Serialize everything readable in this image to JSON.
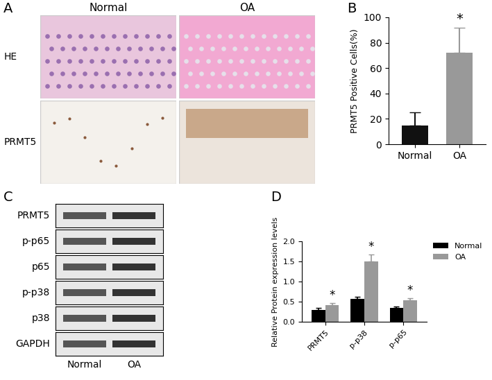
{
  "panel_labels": [
    "A",
    "B",
    "C",
    "D"
  ],
  "histology": {
    "columns": [
      "Normal",
      "OA"
    ],
    "rows": [
      "HE",
      "PRMT5"
    ]
  },
  "blot": {
    "rows": [
      "PRMT5",
      "p-p65",
      "p65",
      "p-p38",
      "p38",
      "GAPDH"
    ],
    "columns": [
      "Normal",
      "OA"
    ]
  },
  "chart_data": [
    {
      "type": "bar",
      "categories": [
        "Normal",
        "OA"
      ],
      "values": [
        15,
        72
      ],
      "errors": [
        10,
        20
      ],
      "colors": [
        "#111111",
        "#999999"
      ],
      "y_label": "PRMT5 Positive Cells(%)",
      "ylim": [
        0,
        100
      ],
      "yticks": [
        0,
        20,
        40,
        60,
        80,
        100
      ],
      "annotations": [
        {
          "category": "OA",
          "text": "*"
        }
      ]
    },
    {
      "type": "bar",
      "categories": [
        "PRMT5",
        "p-p38",
        "p-p65"
      ],
      "series": [
        {
          "name": "Normal",
          "color": "#000000",
          "values": [
            0.3,
            0.57,
            0.34
          ],
          "errors": [
            0.04,
            0.05,
            0.04
          ]
        },
        {
          "name": "OA",
          "color": "#999999",
          "values": [
            0.42,
            1.5,
            0.54
          ],
          "errors": [
            0.05,
            0.18,
            0.05
          ]
        }
      ],
      "y_label": "Relative Protein expression levels",
      "ylim": [
        0,
        2.0
      ],
      "yticks": [
        {
          "value": 0,
          "label": "0.0"
        },
        {
          "value": 0.5,
          "label": "0.5"
        },
        {
          "value": 1.0,
          "label": "1.0"
        },
        {
          "value": 1.5,
          "label": "1.5"
        },
        {
          "value": 2.0,
          "label": "2.0"
        }
      ],
      "legend": "upper right",
      "annotations": [
        {
          "category": "PRMT5",
          "series": "OA",
          "text": "*"
        },
        {
          "category": "p-p38",
          "series": "OA",
          "text": "*"
        },
        {
          "category": "p-p65",
          "series": "OA",
          "text": "*"
        }
      ]
    }
  ]
}
